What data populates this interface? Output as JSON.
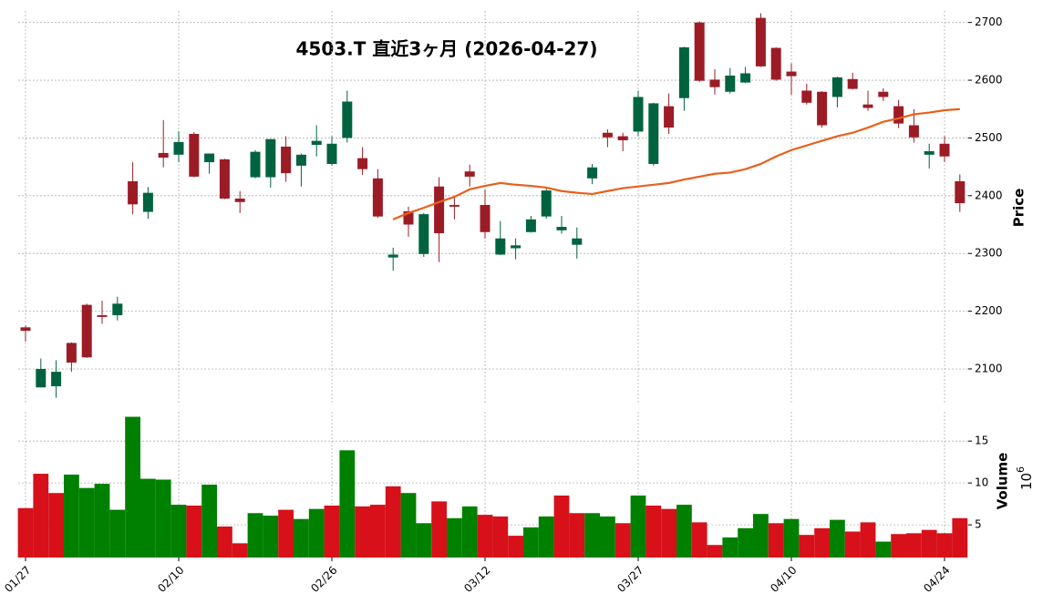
{
  "chart_data": {
    "type": "candlestick",
    "title": "4503.T 直近3ヶ月 (2026-04-27)",
    "categories": [
      "01/27",
      null,
      null,
      null,
      null,
      null,
      null,
      null,
      null,
      null,
      "02/10",
      null,
      null,
      null,
      null,
      null,
      null,
      null,
      null,
      null,
      "02/26",
      null,
      null,
      null,
      null,
      null,
      null,
      null,
      null,
      null,
      "03/12",
      null,
      null,
      null,
      null,
      null,
      null,
      null,
      null,
      null,
      "03/27",
      null,
      null,
      null,
      null,
      null,
      null,
      null,
      null,
      null,
      "04/10",
      null,
      null,
      null,
      null,
      null,
      null,
      null,
      null,
      null,
      "04/24",
      null
    ],
    "open": [
      2172,
      2068,
      2070,
      2145,
      2211,
      2193,
      2193,
      2425,
      2372,
      2474,
      2471,
      2507,
      2458,
      2463,
      2395,
      2432,
      2432,
      2485,
      2452,
      2488,
      2455,
      2500,
      2465,
      2430,
      2293,
      2373,
      2299,
      2416,
      2384,
      2442,
      2384,
      2298,
      2309,
      2337,
      2364,
      2340,
      2315,
      2430,
      2509,
      2503,
      2511,
      2455,
      2555,
      2569,
      2700,
      2601,
      2580,
      2596,
      2708,
      2656,
      2615,
      2582,
      2580,
      2571,
      2602,
      2558,
      2580,
      2555,
      2522,
      2471,
      2490,
      2425
    ],
    "high": [
      2175,
      2118,
      2115,
      2146,
      2213,
      2218,
      2225,
      2458,
      2415,
      2531,
      2512,
      2510,
      2473,
      2464,
      2408,
      2479,
      2498,
      2503,
      2473,
      2522,
      2503,
      2582,
      2484,
      2446,
      2310,
      2381,
      2370,
      2432,
      2400,
      2454,
      2411,
      2356,
      2326,
      2365,
      2412,
      2365,
      2345,
      2455,
      2515,
      2509,
      2582,
      2561,
      2577,
      2658,
      2702,
      2619,
      2621,
      2623,
      2716,
      2657,
      2629,
      2594,
      2581,
      2606,
      2613,
      2582,
      2586,
      2566,
      2550,
      2490,
      2503,
      2437
    ],
    "low": [
      2147,
      2068,
      2050,
      2095,
      2119,
      2178,
      2184,
      2368,
      2360,
      2449,
      2458,
      2432,
      2438,
      2394,
      2370,
      2430,
      2414,
      2424,
      2416,
      2468,
      2452,
      2492,
      2436,
      2362,
      2270,
      2329,
      2294,
      2285,
      2359,
      2416,
      2326,
      2297,
      2290,
      2336,
      2360,
      2334,
      2291,
      2420,
      2484,
      2477,
      2503,
      2452,
      2507,
      2547,
      2597,
      2575,
      2577,
      2595,
      2623,
      2599,
      2575,
      2558,
      2518,
      2553,
      2584,
      2547,
      2564,
      2517,
      2492,
      2447,
      2458,
      2372
    ],
    "close": [
      2166,
      2100,
      2095,
      2111,
      2120,
      2190,
      2213,
      2385,
      2405,
      2466,
      2493,
      2433,
      2473,
      2395,
      2389,
      2476,
      2498,
      2439,
      2471,
      2495,
      2490,
      2563,
      2446,
      2364,
      2298,
      2350,
      2368,
      2335,
      2381,
      2433,
      2337,
      2326,
      2314,
      2359,
      2409,
      2346,
      2326,
      2449,
      2501,
      2496,
      2571,
      2560,
      2518,
      2657,
      2599,
      2588,
      2608,
      2612,
      2624,
      2601,
      2607,
      2561,
      2522,
      2605,
      2585,
      2552,
      2571,
      2525,
      2501,
      2477,
      2468,
      2387
    ],
    "up_color": "#006340",
    "down_color": "#9c1c26",
    "ma": {
      "color": "#e8601c",
      "values": [
        null,
        null,
        null,
        null,
        null,
        null,
        null,
        null,
        null,
        null,
        null,
        null,
        null,
        null,
        null,
        null,
        null,
        null,
        null,
        null,
        null,
        null,
        null,
        null,
        2359,
        2370,
        2379,
        2389,
        2398,
        2411,
        2417,
        2422,
        2419,
        2417,
        2414,
        2408,
        2405,
        2403,
        2408,
        2413,
        2416,
        2419,
        2422,
        2428,
        2433,
        2438,
        2440,
        2446,
        2455,
        2468,
        2479,
        2487,
        2495,
        2503,
        2509,
        2518,
        2528,
        2534,
        2541,
        2544,
        2548,
        2550
      ]
    },
    "ylabel": "Price",
    "ylim": [
      2040,
      2720
    ],
    "yticks": [
      2100,
      2200,
      2300,
      2400,
      2500,
      2600,
      2700
    ],
    "grid": true,
    "volume": {
      "ylabel": "Volume",
      "scale_base": "10",
      "scale_exponent": "6",
      "up_color": "#008000",
      "down_color": "#d7101a",
      "ylim": [
        1.1,
        18.5
      ],
      "yticks": [
        5,
        10,
        15
      ],
      "values": [
        7.0,
        11.1,
        8.8,
        11.0,
        9.4,
        9.9,
        6.8,
        17.9,
        10.5,
        10.4,
        7.4,
        7.3,
        9.8,
        4.8,
        2.8,
        6.4,
        6.1,
        6.8,
        5.7,
        6.9,
        7.3,
        13.9,
        7.2,
        7.4,
        9.6,
        8.8,
        5.2,
        7.8,
        5.8,
        7.2,
        6.2,
        6.0,
        3.7,
        4.7,
        6.0,
        8.5,
        6.4,
        6.4,
        6.0,
        5.2,
        8.5,
        7.3,
        6.9,
        7.4,
        5.3,
        2.6,
        3.5,
        4.6,
        6.3,
        5.2,
        5.7,
        3.8,
        4.6,
        5.6,
        4.2,
        5.3,
        3.0,
        3.9,
        4.0,
        4.4,
        4.0,
        5.8
      ]
    }
  }
}
